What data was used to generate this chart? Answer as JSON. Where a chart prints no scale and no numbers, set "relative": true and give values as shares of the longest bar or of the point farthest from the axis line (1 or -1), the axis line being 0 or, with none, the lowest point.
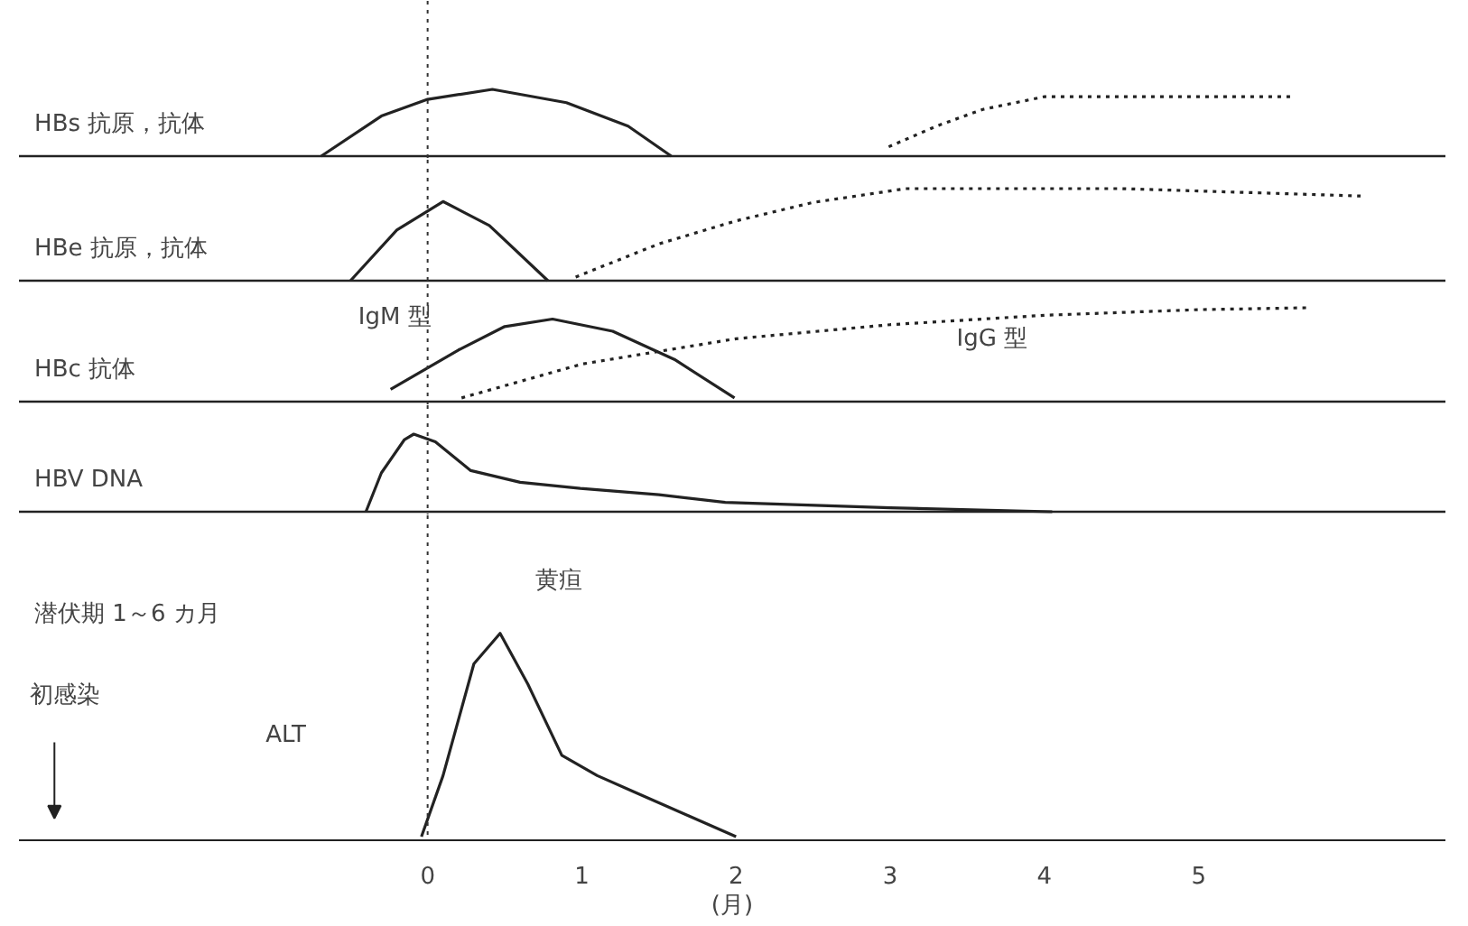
{
  "chart_data": [
    {
      "type": "line",
      "title": "HBs 抗原，抗体",
      "relative": true,
      "xlim": [
        -2.65,
        6.6
      ],
      "tick_labels": false,
      "ref_lines": [
        {
          "axis": "x",
          "value": 0,
          "line_style": "dotted"
        }
      ],
      "series": [
        {
          "color": "#222222",
          "line_style": "solid",
          "x": [
            -0.69,
            -0.3,
            0,
            0.42,
            0.9,
            1.3,
            1.58
          ],
          "values": [
            0,
            0.6,
            0.85,
            1,
            0.8,
            0.45,
            0
          ]
        },
        {
          "color": "#222222",
          "line_style": "dotted",
          "x": [
            2.99,
            3.3,
            3.6,
            4.0,
            4.5,
            5.6
          ],
          "values": [
            0.14,
            0.45,
            0.7,
            0.89,
            0.89,
            0.89
          ]
        }
      ]
    },
    {
      "type": "line",
      "title": "HBe 抗原，抗体",
      "relative": true,
      "xlim": [
        -2.65,
        6.6
      ],
      "tick_labels": false,
      "ref_lines": [
        {
          "axis": "x",
          "value": 0,
          "line_style": "dotted"
        }
      ],
      "series": [
        {
          "color": "#222222",
          "line_style": "solid",
          "x": [
            -0.5,
            -0.2,
            0.1,
            0.4,
            0.78
          ],
          "values": [
            0,
            0.55,
            0.86,
            0.6,
            0
          ]
        },
        {
          "color": "#222222",
          "line_style": "dotted",
          "x": [
            0.96,
            1.5,
            2.0,
            2.5,
            3.1,
            4.5,
            6.05
          ],
          "values": [
            0.04,
            0.4,
            0.65,
            0.85,
            1,
            1,
            0.92
          ]
        }
      ]
    },
    {
      "type": "line",
      "title": "HBc 抗体",
      "relative": true,
      "xlim": [
        -2.65,
        6.6
      ],
      "tick_labels": false,
      "ref_lines": [
        {
          "axis": "x",
          "value": 0,
          "line_style": "dotted"
        }
      ],
      "series": [
        {
          "name": "IgM 型",
          "color": "#222222",
          "line_style": "solid",
          "x": [
            -0.24,
            0.2,
            0.5,
            0.81,
            1.2,
            1.6,
            1.99
          ],
          "values": [
            0.13,
            0.55,
            0.8,
            0.88,
            0.75,
            0.45,
            0.04
          ]
        },
        {
          "name": "IgG 型",
          "color": "#222222",
          "line_style": "dotted",
          "x": [
            0.22,
            1,
            2,
            3,
            4,
            5,
            5.7
          ],
          "values": [
            0.04,
            0.4,
            0.67,
            0.82,
            0.92,
            0.98,
            1
          ]
        }
      ]
    },
    {
      "type": "line",
      "title": "HBV  DNA",
      "relative": true,
      "xlim": [
        -2.65,
        6.6
      ],
      "tick_labels": false,
      "ref_lines": [
        {
          "axis": "x",
          "value": 0,
          "line_style": "dotted"
        }
      ],
      "series": [
        {
          "color": "#222222",
          "line_style": "solid",
          "x": [
            -0.4,
            -0.3,
            -0.15,
            -0.09,
            0.05,
            0.28,
            0.6,
            0.99,
            1.5,
            1.93,
            3,
            4.05
          ],
          "values": [
            0,
            0.5,
            0.93,
            1,
            0.9,
            0.53,
            0.38,
            0.3,
            0.22,
            0.12,
            0.05,
            0
          ]
        }
      ]
    },
    {
      "type": "line",
      "relative": true,
      "xlim": [
        -2.65,
        6.6
      ],
      "xticks": [
        0,
        1,
        2,
        3,
        4,
        5
      ],
      "xlabel": "(月)",
      "tick_labels": "x",
      "ref_lines": [
        {
          "axis": "x",
          "value": 0,
          "line_style": "dotted"
        }
      ],
      "annotations": [
        "潜伏期 1～6 カ月",
        "初感染",
        "黄疸"
      ],
      "series": [
        {
          "name": "ALT",
          "color": "#222222",
          "line_style": "solid",
          "x": [
            -0.04,
            0.1,
            0.3,
            0.47,
            0.65,
            0.87,
            1.1,
            1.34,
            1.7,
            2.0
          ],
          "values": [
            0,
            0.3,
            0.85,
            1,
            0.75,
            0.4,
            0.3,
            0.22,
            0.1,
            0
          ]
        }
      ]
    }
  ]
}
